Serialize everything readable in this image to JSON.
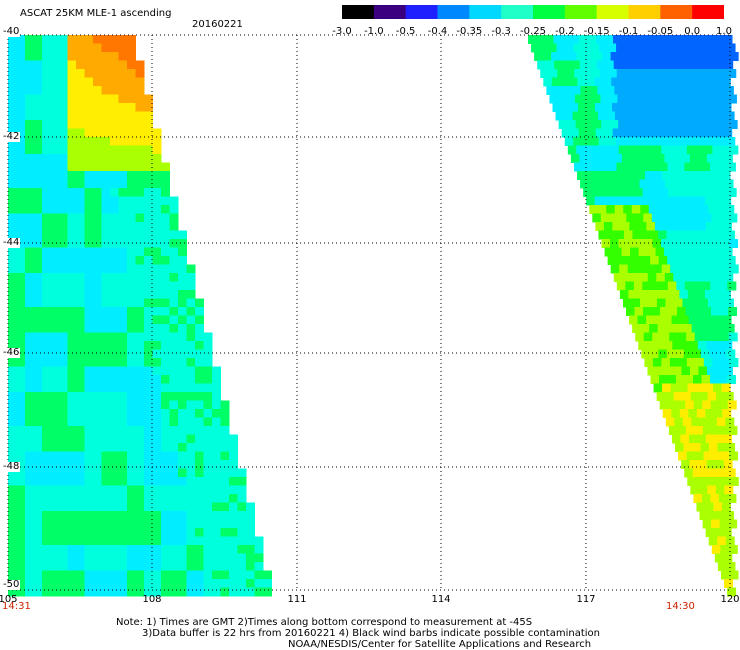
{
  "header": {
    "title": "ASCAT 25KM MLE-1 ascending",
    "date": "20160221"
  },
  "colorbar": {
    "labels": [
      "-3.0",
      "-1.0",
      "-0.5",
      "-0.4",
      "-0.35",
      "-0.3",
      "-0.25",
      "-0.2",
      "-0.15",
      "-0.1",
      "-0.05",
      "0.0",
      "1.0"
    ],
    "colors": [
      "#000000",
      "#3a0080",
      "#2020ff",
      "#0088ff",
      "#00d8ff",
      "#20ffc8",
      "#00ff40",
      "#60ff00",
      "#d8ff00",
      "#ffd000",
      "#ff6000",
      "#ff0000"
    ]
  },
  "map": {
    "lat_range": [
      -50,
      -40
    ],
    "lon_range": [
      105,
      120
    ],
    "y_labels": [
      "-40",
      "-42",
      "-44",
      "-46",
      "-48",
      "-50"
    ],
    "x_labels": [
      "105",
      "108",
      "111",
      "114",
      "117",
      "120"
    ],
    "time_left": "14:31",
    "time_right": "14:30",
    "time_color": "#cc2200"
  },
  "notes": [
    "Note: 1) Times are GMT 2)Times along bottom correspond to measurement at -45S",
    "3)Data buffer is 22 hrs from 20160221 4) Black wind barbs indicate possible contamination",
    "NOAA/NESDIS/Center for Satellite Applications and Research"
  ]
}
